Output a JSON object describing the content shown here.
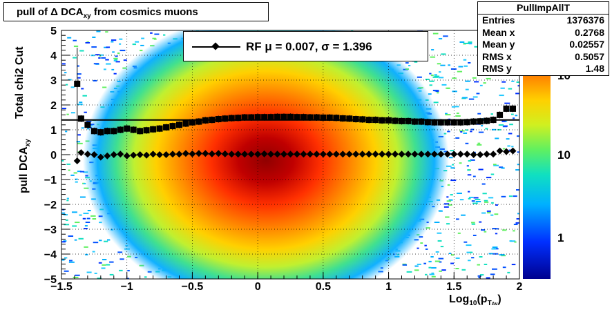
{
  "title": {
    "prefix": "pull of ",
    "delta": "Δ",
    "base": " DCA",
    "sub": "xy",
    "suffix": "  from cosmics muons"
  },
  "stats": {
    "name": "PullImpAllT",
    "rows": [
      {
        "label": "Entries",
        "value": "1376376"
      },
      {
        "label": "Mean x",
        "value": "0.2768"
      },
      {
        "label": "Mean y",
        "value": "0.02557"
      },
      {
        "label": "RMS x",
        "value": "0.5057"
      },
      {
        "label": "RMS y",
        "value": "1.48"
      }
    ]
  },
  "legend": {
    "text": "RF μ =  0.007, σ =   1.396"
  },
  "ylabel": {
    "cut": "Total chi2 Cut",
    "pull_base": "pull DCA",
    "pull_sub": "xy"
  },
  "xlabel": {
    "base": "Log",
    "sub1": "10",
    "mid": "(p",
    "sub2": "T",
    "sub3": "Av",
    "end": ")"
  },
  "colorbar": {
    "labels": [
      "1",
      "10",
      "10"
    ],
    "colors": [
      "#00008f",
      "#0030ff",
      "#00b0ff",
      "#10e0c0",
      "#60f060",
      "#d0f020",
      "#ffd000",
      "#ff8000",
      "#ff3000",
      "#d00000",
      "#800000"
    ]
  },
  "chart_data": {
    "type": "heatmap",
    "xlim": [
      -1.5,
      2
    ],
    "ylim": [
      -5,
      5
    ],
    "xticks": [
      -1.5,
      -1,
      -0.5,
      0,
      0.5,
      1,
      1.5,
      2
    ],
    "yticks": [
      -5,
      -4,
      -3,
      -2,
      -1,
      0,
      1,
      2,
      3,
      4,
      5
    ],
    "xtick_labels": [
      "−1.5",
      "−1",
      "−0.5",
      "0",
      "0.5",
      "1",
      "1.5",
      "2"
    ],
    "ytick_labels": [
      "−5",
      "−4",
      "−3",
      "−2",
      "−1",
      "0",
      "1",
      "2",
      "3",
      "4",
      "5"
    ],
    "grid": true,
    "reference_line_y": 1.396,
    "series": [
      {
        "name": "sigma",
        "x": [
          -1.38,
          -1.35,
          -1.3,
          -1.25,
          -1.2,
          -1.15,
          -1.1,
          -1.05,
          -1,
          -0.95,
          -0.9,
          -0.85,
          -0.8,
          -0.75,
          -0.7,
          -0.65,
          -0.6,
          -0.55,
          -0.5,
          -0.45,
          -0.4,
          -0.35,
          -0.3,
          -0.25,
          -0.2,
          -0.15,
          -0.1,
          -0.05,
          0,
          0.05,
          0.1,
          0.15,
          0.2,
          0.25,
          0.3,
          0.35,
          0.4,
          0.45,
          0.5,
          0.55,
          0.6,
          0.65,
          0.7,
          0.75,
          0.8,
          0.85,
          0.9,
          0.95,
          1,
          1.05,
          1.1,
          1.15,
          1.2,
          1.25,
          1.3,
          1.35,
          1.4,
          1.45,
          1.5,
          1.55,
          1.6,
          1.65,
          1.7,
          1.75,
          1.8,
          1.85,
          1.9,
          1.95
        ],
        "y": [
          2.85,
          1.45,
          1.2,
          0.95,
          0.9,
          0.95,
          0.95,
          1.0,
          1.05,
          1.0,
          0.95,
          0.98,
          1.02,
          1.05,
          1.1,
          1.15,
          1.2,
          1.25,
          1.3,
          1.33,
          1.38,
          1.4,
          1.43,
          1.45,
          1.47,
          1.48,
          1.5,
          1.5,
          1.51,
          1.51,
          1.51,
          1.52,
          1.52,
          1.52,
          1.51,
          1.51,
          1.5,
          1.5,
          1.49,
          1.49,
          1.48,
          1.46,
          1.45,
          1.43,
          1.42,
          1.4,
          1.4,
          1.38,
          1.38,
          1.36,
          1.35,
          1.35,
          1.33,
          1.33,
          1.31,
          1.3,
          1.3,
          1.3,
          1.3,
          1.3,
          1.31,
          1.33,
          1.34,
          1.36,
          1.4,
          1.6,
          1.85,
          1.85
        ]
      },
      {
        "name": "mean",
        "x": [
          -1.38,
          -1.35,
          -1.3,
          -1.25,
          -1.2,
          -1.15,
          -1.1,
          -1.05,
          -1,
          -0.95,
          -0.9,
          -0.85,
          -0.8,
          -0.75,
          -0.7,
          -0.65,
          -0.6,
          -0.55,
          -0.5,
          -0.45,
          -0.4,
          -0.35,
          -0.3,
          -0.25,
          -0.2,
          -0.15,
          -0.1,
          -0.05,
          0,
          0.05,
          0.1,
          0.15,
          0.2,
          0.25,
          0.3,
          0.35,
          0.4,
          0.45,
          0.5,
          0.55,
          0.6,
          0.65,
          0.7,
          0.75,
          0.8,
          0.85,
          0.9,
          0.95,
          1,
          1.05,
          1.1,
          1.15,
          1.2,
          1.25,
          1.3,
          1.35,
          1.4,
          1.45,
          1.5,
          1.55,
          1.6,
          1.65,
          1.7,
          1.75,
          1.8,
          1.85,
          1.9,
          1.95
        ],
        "y": [
          -0.25,
          0.08,
          0.02,
          0.0,
          -0.1,
          -0.05,
          0.0,
          0.02,
          -0.05,
          -0.02,
          0.0,
          -0.02,
          0.02,
          0.0,
          0.0,
          0.02,
          0.02,
          0.05,
          0.03,
          0.05,
          0.05,
          0.03,
          0.05,
          0.03,
          0.02,
          0.02,
          0.02,
          0.02,
          0.02,
          0.03,
          0.02,
          0.02,
          0.02,
          0.02,
          0.02,
          0.02,
          0.02,
          0.02,
          0.02,
          0.02,
          0.02,
          0.02,
          0.02,
          0.02,
          0.02,
          0.02,
          0.02,
          0.02,
          0.02,
          0.02,
          0.02,
          0.02,
          0.02,
          0.02,
          0.02,
          0.02,
          0.02,
          0.02,
          0.02,
          0.02,
          0.02,
          0.0,
          0.0,
          0.02,
          0.02,
          0.15,
          0.12,
          0.15
        ]
      }
    ]
  }
}
